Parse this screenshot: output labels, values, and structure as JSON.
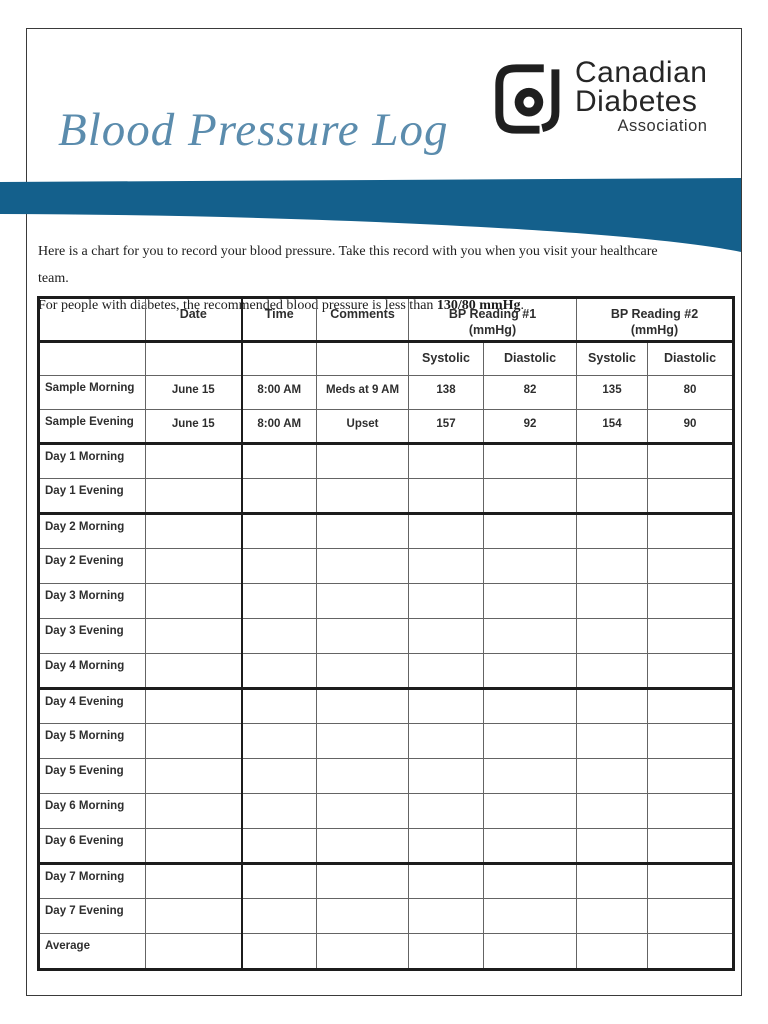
{
  "page": {
    "title": "Blood Pressure Log",
    "logo": {
      "line1": "Canadian",
      "line2": "Diabetes",
      "line3": "Association"
    },
    "intro": {
      "line1": "Here is a chart for you to record your blood pressure. Take this record with you when you visit your healthcare team.",
      "line2_prefix": "For people with diabetes, the recommended blood pressure is less than ",
      "line2_bold": "130/80 mmHg",
      "line2_suffix": "."
    }
  },
  "colors": {
    "title_blue": "#5b8cad",
    "band_blue": "#14608c",
    "logo_black": "#1f1f1f",
    "thick_rule": "#1c1c1c",
    "thin_rule": "#646464"
  },
  "table": {
    "header1": {
      "corner": "",
      "date": "Date",
      "time": "Time",
      "comments": "Comments",
      "bp1": "BP Reading #1\n(mmHg)",
      "bp2": "BP Reading #2\n(mmHg)"
    },
    "header2": {
      "systolic": "Systolic",
      "diastolic": "Diastolic"
    },
    "rows": [
      {
        "label": "Sample Morning",
        "values": [
          "June 15",
          "8:00 AM",
          "Meds at 9 AM",
          "138",
          "82",
          "135",
          "80"
        ],
        "sample": true,
        "thick_bottom": false
      },
      {
        "label": "Sample Evening",
        "values": [
          "June 15",
          "8:00 AM",
          "Upset",
          "157",
          "92",
          "154",
          "90"
        ],
        "sample": true,
        "thick_bottom": true
      },
      {
        "label": "Day 1 Morning",
        "values": [
          "",
          "",
          "",
          "",
          "",
          "",
          ""
        ],
        "thick_bottom": false
      },
      {
        "label": "Day 1 Evening",
        "values": [
          "",
          "",
          "",
          "",
          "",
          "",
          ""
        ],
        "thick_bottom": true
      },
      {
        "label": "Day 2 Morning",
        "values": [
          "",
          "",
          "",
          "",
          "",
          "",
          ""
        ],
        "thick_bottom": false
      },
      {
        "label": "Day 2 Evening",
        "values": [
          "",
          "",
          "",
          "",
          "",
          "",
          ""
        ],
        "thick_bottom": false
      },
      {
        "label": "Day 3 Morning",
        "values": [
          "",
          "",
          "",
          "",
          "",
          "",
          ""
        ],
        "thick_bottom": false
      },
      {
        "label": "Day 3 Evening",
        "values": [
          "",
          "",
          "",
          "",
          "",
          "",
          ""
        ],
        "thick_bottom": false
      },
      {
        "label": "Day 4 Morning",
        "values": [
          "",
          "",
          "",
          "",
          "",
          "",
          ""
        ],
        "thick_bottom": true
      },
      {
        "label": "Day 4 Evening",
        "values": [
          "",
          "",
          "",
          "",
          "",
          "",
          ""
        ],
        "thick_bottom": false
      },
      {
        "label": "Day 5 Morning",
        "values": [
          "",
          "",
          "",
          "",
          "",
          "",
          ""
        ],
        "thick_bottom": false
      },
      {
        "label": "Day 5 Evening",
        "values": [
          "",
          "",
          "",
          "",
          "",
          "",
          ""
        ],
        "thick_bottom": false
      },
      {
        "label": "Day 6 Morning",
        "values": [
          "",
          "",
          "",
          "",
          "",
          "",
          ""
        ],
        "thick_bottom": false
      },
      {
        "label": "Day 6 Evening",
        "values": [
          "",
          "",
          "",
          "",
          "",
          "",
          ""
        ],
        "thick_bottom": true
      },
      {
        "label": "Day 7 Morning",
        "values": [
          "",
          "",
          "",
          "",
          "",
          "",
          ""
        ],
        "thick_bottom": false
      },
      {
        "label": "Day 7 Evening",
        "values": [
          "",
          "",
          "",
          "",
          "",
          "",
          ""
        ],
        "thick_bottom": false
      },
      {
        "label": "Average",
        "values": [
          "",
          "",
          "",
          "",
          "",
          "",
          ""
        ],
        "thick_bottom": false,
        "last": true
      }
    ]
  }
}
